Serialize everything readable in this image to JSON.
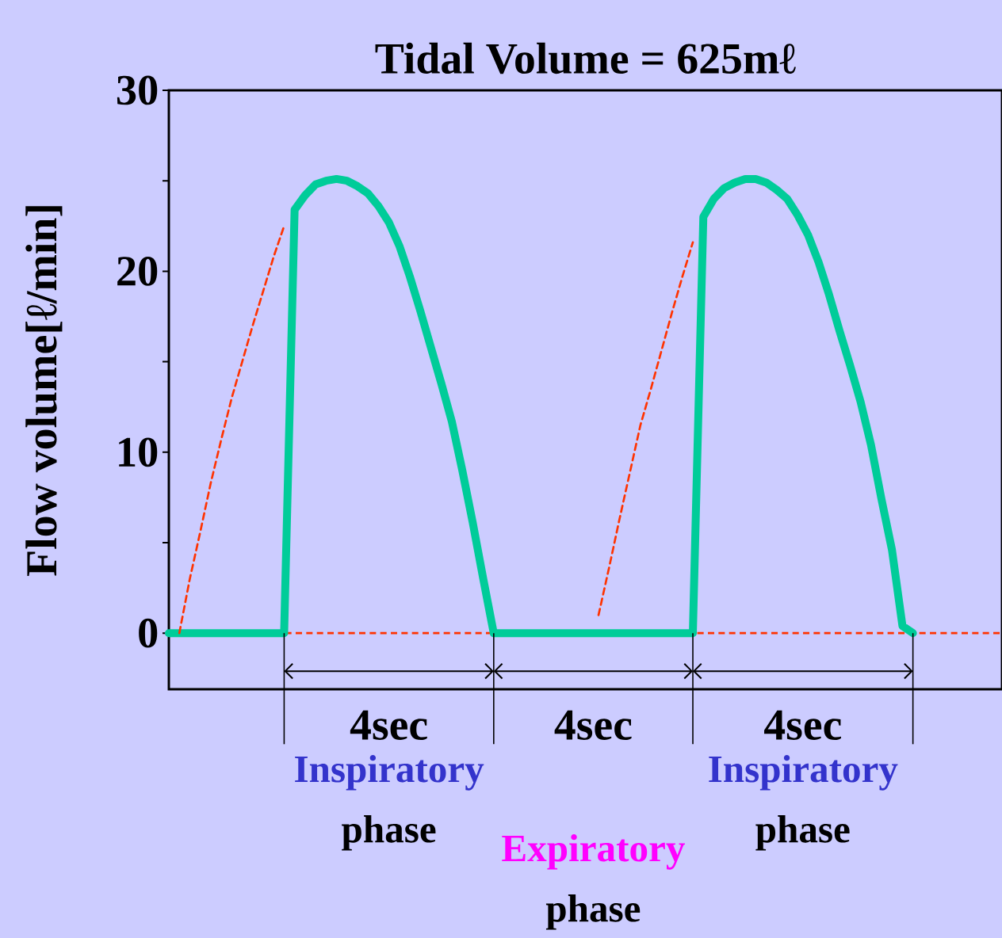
{
  "chart_data": {
    "type": "line",
    "title": "Tidal Volume = 625mℓ",
    "ylabel": "Flow volume[ℓ/min]",
    "categories": [
      null,
      null,
      null,
      null,
      null,
      null,
      null,
      null,
      null,
      null,
      null,
      null,
      null,
      null,
      null,
      null,
      null,
      null,
      null,
      null,
      null,
      null,
      null,
      null,
      null,
      null,
      null,
      null,
      null,
      null,
      null,
      null,
      null,
      null,
      null,
      null,
      null,
      null,
      null,
      null,
      null,
      null,
      null,
      null,
      null,
      null,
      null,
      null,
      null,
      null,
      null,
      null,
      null,
      null,
      null,
      null,
      null,
      null,
      null,
      null,
      null,
      null,
      null,
      null,
      null,
      null,
      null,
      null,
      null,
      null,
      null,
      null
    ],
    "ylim": [
      -3.1,
      30
    ],
    "yticks": [
      0,
      {
        "value": 5,
        "label": null
      },
      10,
      {
        "value": 15,
        "label": null
      },
      20,
      {
        "value": 25,
        "label": null
      },
      30
    ],
    "marker": "none",
    "series": [
      {
        "color": "#00cc99",
        "line_style": "solid",
        "values": [
          0,
          0,
          0,
          0,
          0,
          0,
          0,
          0,
          0,
          0,
          0,
          0,
          23.4,
          24.2,
          24.8,
          25.0,
          25.1,
          25.0,
          24.7,
          24.3,
          23.6,
          22.7,
          21.4,
          19.7,
          17.8,
          15.8,
          13.8,
          11.7,
          9.0,
          6.1,
          3.0,
          0,
          0,
          0,
          0,
          0,
          0,
          0,
          0,
          0,
          0,
          0,
          0,
          0,
          0,
          0,
          0,
          0,
          0,
          0,
          0,
          23.0,
          24.0,
          24.6,
          24.9,
          25.1,
          25.1,
          24.9,
          24.5,
          24.0,
          23.1,
          22.0,
          20.5,
          18.7,
          16.7,
          14.8,
          12.8,
          10.4,
          7.4,
          4.6,
          0.4,
          0
        ]
      },
      {
        "color": "#ff3300",
        "line_style": "dashed",
        "values": [
          null,
          0,
          3.0,
          5.6,
          8.3,
          10.7,
          13.0,
          15.0,
          17.0,
          18.9,
          20.8,
          22.5,
          null,
          null,
          null,
          null,
          null,
          null,
          null,
          null,
          null,
          null,
          null,
          null,
          null,
          null,
          null,
          null,
          null,
          null,
          null,
          null,
          null,
          null,
          null,
          null,
          null,
          null,
          null,
          null,
          null,
          1.0,
          3.6,
          6.3,
          8.9,
          11.5,
          13.5,
          15.6,
          17.7,
          19.7,
          21.6,
          null,
          null,
          null,
          null,
          null,
          null,
          null,
          null,
          null,
          null,
          null,
          null,
          null,
          null,
          null,
          null,
          null,
          null,
          null,
          null,
          null
        ]
      }
    ],
    "ref_lines": [
      {
        "axis": "y",
        "value": 0,
        "color": "#ff3300",
        "line_style": "dashed"
      }
    ],
    "annotations": [
      "4sec",
      "4sec",
      "4sec",
      "Inspiratory",
      "phase",
      "Expiratory",
      "phase",
      "Inspiratory",
      "phase"
    ]
  }
}
